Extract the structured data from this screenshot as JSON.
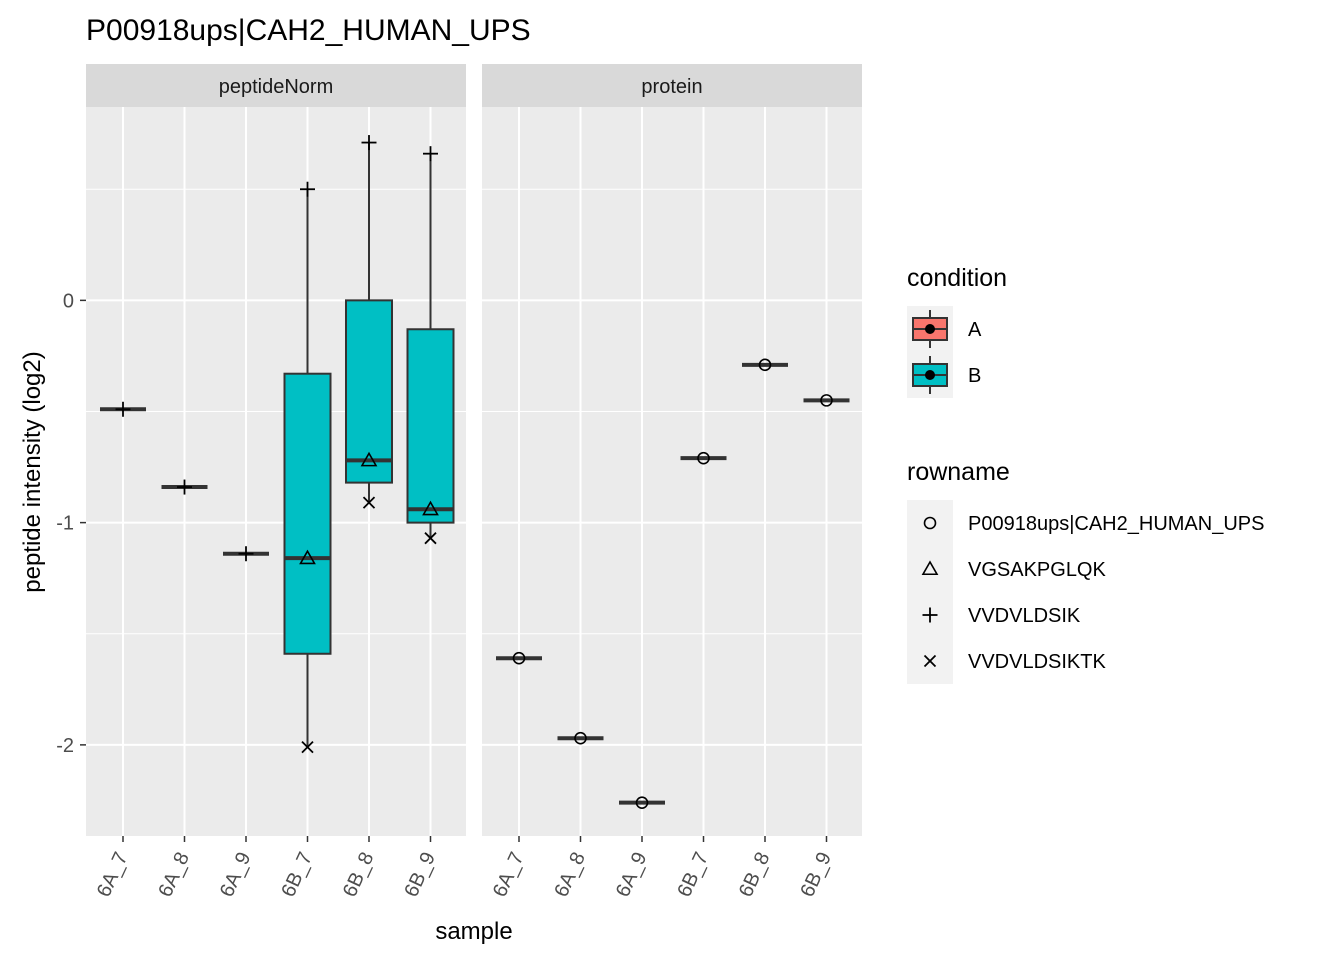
{
  "chart_data": {
    "type": "box",
    "title": "P00918ups|CAH2_HUMAN_UPS",
    "xlabel": "sample",
    "ylabel": "peptide intensity (log2)",
    "categories": [
      "6A_7",
      "6A_8",
      "6A_9",
      "6B_7",
      "6B_8",
      "6B_9"
    ],
    "y_ticks": [
      0,
      -1,
      -2
    ],
    "y_tick_labels": [
      "0",
      "-1",
      "-2"
    ],
    "ylim": [
      -2.41,
      0.87
    ],
    "grid": true,
    "facets": [
      {
        "name": "peptideNorm",
        "boxes": [
          {
            "sample": "6A_7",
            "condition": "A",
            "min": -0.49,
            "q1": -0.49,
            "median": -0.49,
            "q3": -0.49,
            "max": -0.49
          },
          {
            "sample": "6A_8",
            "condition": "A",
            "min": -0.84,
            "q1": -0.84,
            "median": -0.84,
            "q3": -0.84,
            "max": -0.84
          },
          {
            "sample": "6A_9",
            "condition": "A",
            "min": -1.14,
            "q1": -1.14,
            "median": -1.14,
            "q3": -1.14,
            "max": -1.14
          },
          {
            "sample": "6B_7",
            "condition": "B",
            "min": -2.01,
            "q1": -1.59,
            "median": -1.16,
            "q3": -0.33,
            "max": 0.5
          },
          {
            "sample": "6B_8",
            "condition": "B",
            "min": -0.91,
            "q1": -0.82,
            "median": -0.72,
            "q3": 0.0,
            "max": 0.71
          },
          {
            "sample": "6B_9",
            "condition": "B",
            "min": -1.07,
            "q1": -1.0,
            "median": -0.94,
            "q3": -0.13,
            "max": 0.66
          }
        ],
        "points": [
          {
            "sample": "6A_7",
            "rowname": "VVDVLDSIK",
            "value": -0.49
          },
          {
            "sample": "6A_8",
            "rowname": "VVDVLDSIK",
            "value": -0.84
          },
          {
            "sample": "6A_9",
            "rowname": "VVDVLDSIK",
            "value": -1.14
          },
          {
            "sample": "6B_7",
            "rowname": "VVDVLDSIK",
            "value": 0.5
          },
          {
            "sample": "6B_7",
            "rowname": "VGSAKPGLQK",
            "value": -1.16
          },
          {
            "sample": "6B_7",
            "rowname": "VVDVLDSIKTK",
            "value": -2.01
          },
          {
            "sample": "6B_8",
            "rowname": "VVDVLDSIK",
            "value": 0.71
          },
          {
            "sample": "6B_8",
            "rowname": "VGSAKPGLQK",
            "value": -0.72
          },
          {
            "sample": "6B_8",
            "rowname": "VVDVLDSIKTK",
            "value": -0.91
          },
          {
            "sample": "6B_9",
            "rowname": "VVDVLDSIK",
            "value": 0.66
          },
          {
            "sample": "6B_9",
            "rowname": "VGSAKPGLQK",
            "value": -0.94
          },
          {
            "sample": "6B_9",
            "rowname": "VVDVLDSIKTK",
            "value": -1.07
          }
        ]
      },
      {
        "name": "protein",
        "boxes": [
          {
            "sample": "6A_7",
            "condition": "A",
            "min": -1.61,
            "q1": -1.61,
            "median": -1.61,
            "q3": -1.61,
            "max": -1.61
          },
          {
            "sample": "6A_8",
            "condition": "A",
            "min": -1.97,
            "q1": -1.97,
            "median": -1.97,
            "q3": -1.97,
            "max": -1.97
          },
          {
            "sample": "6A_9",
            "condition": "A",
            "min": -2.26,
            "q1": -2.26,
            "median": -2.26,
            "q3": -2.26,
            "max": -2.26
          },
          {
            "sample": "6B_7",
            "condition": "B",
            "min": -0.71,
            "q1": -0.71,
            "median": -0.71,
            "q3": -0.71,
            "max": -0.71
          },
          {
            "sample": "6B_8",
            "condition": "B",
            "min": -0.29,
            "q1": -0.29,
            "median": -0.29,
            "q3": -0.29,
            "max": -0.29
          },
          {
            "sample": "6B_9",
            "condition": "B",
            "min": -0.45,
            "q1": -0.45,
            "median": -0.45,
            "q3": -0.45,
            "max": -0.45
          }
        ],
        "points": [
          {
            "sample": "6A_7",
            "rowname": "P00918ups|CAH2_HUMAN_UPS",
            "value": -1.61
          },
          {
            "sample": "6A_8",
            "rowname": "P00918ups|CAH2_HUMAN_UPS",
            "value": -1.97
          },
          {
            "sample": "6A_9",
            "rowname": "P00918ups|CAH2_HUMAN_UPS",
            "value": -2.26
          },
          {
            "sample": "6B_7",
            "rowname": "P00918ups|CAH2_HUMAN_UPS",
            "value": -0.71
          },
          {
            "sample": "6B_8",
            "rowname": "P00918ups|CAH2_HUMAN_UPS",
            "value": -0.29
          },
          {
            "sample": "6B_9",
            "rowname": "P00918ups|CAH2_HUMAN_UPS",
            "value": -0.45
          }
        ]
      }
    ],
    "legends": [
      {
        "title": "condition",
        "entries": [
          {
            "label": "A",
            "color": "#F8766D"
          },
          {
            "label": "B",
            "color": "#00BFC4"
          }
        ]
      },
      {
        "title": "rowname",
        "entries": [
          {
            "label": "P00918ups|CAH2_HUMAN_UPS",
            "shape": "circle"
          },
          {
            "label": "VGSAKPGLQK",
            "shape": "triangle"
          },
          {
            "label": "VVDVLDSIK",
            "shape": "plus"
          },
          {
            "label": "VVDVLDSIKTK",
            "shape": "cross"
          }
        ]
      }
    ],
    "legend_placement": "right"
  }
}
